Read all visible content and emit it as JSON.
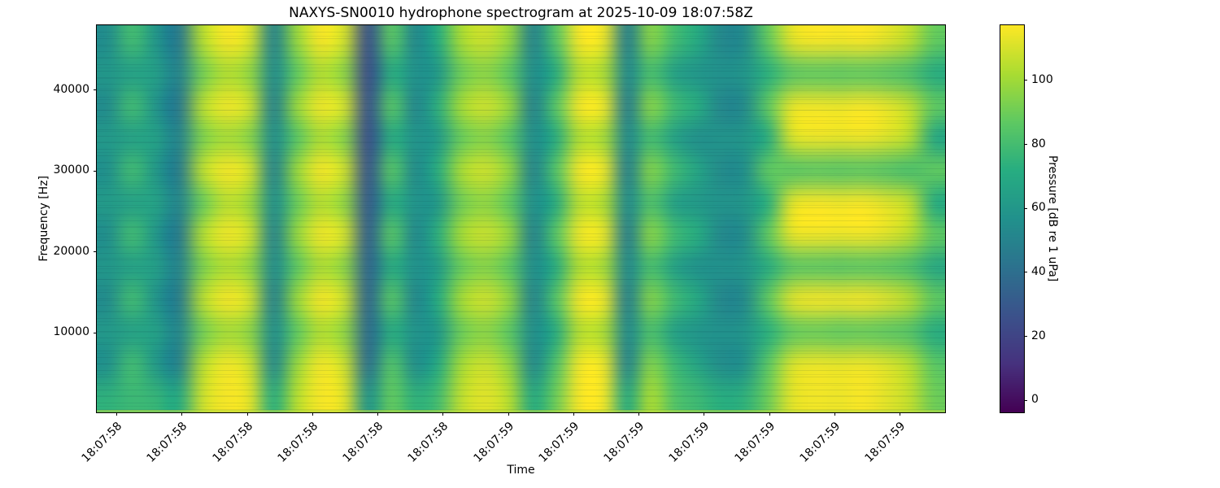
{
  "chart_data": {
    "type": "heatmap",
    "subtype": "spectrogram",
    "title": "NAXYS-SN0010 hydrophone spectrogram at 2025-10-09 18:07:58Z",
    "xlabel": "Time",
    "ylabel": "Frequency [Hz]",
    "x_tick_labels": [
      "18:07:58",
      "18:07:58",
      "18:07:58",
      "18:07:58",
      "18:07:58",
      "18:07:58",
      "18:07:59",
      "18:07:59",
      "18:07:59",
      "18:07:59",
      "18:07:59",
      "18:07:59",
      "18:07:59"
    ],
    "y_ticks": [
      10000,
      20000,
      30000,
      40000
    ],
    "freq_range_hz": [
      0,
      48000
    ],
    "grid_on": false,
    "legend": "none",
    "colorbar": {
      "label": "Pressure [dB re 1 uPa]",
      "ticks": [
        0,
        20,
        40,
        60,
        80,
        100
      ],
      "range_db": [
        -4,
        117
      ],
      "colormap": "viridis",
      "position": "right"
    },
    "grid_shape_note": "grid_db rows run top-to-bottom = 48000 Hz down to 0 Hz; columns run left-to-right in time; values are pressure in dB re 1 uPa (coarse 12x36 resampling of the spectrogram image)",
    "grid_db": [
      [
        55,
        80,
        59,
        45,
        104,
        116,
        110,
        50,
        98,
        116,
        109,
        26,
        86,
        52,
        72,
        102,
        108,
        98,
        50,
        85,
        116,
        114,
        48,
        95,
        80,
        70,
        52,
        54,
        88,
        112,
        116,
        115,
        116,
        112,
        105,
        88
      ],
      [
        60,
        64,
        64,
        50,
        90,
        102,
        96,
        54,
        86,
        102,
        95,
        24,
        70,
        57,
        60,
        89,
        95,
        85,
        55,
        70,
        103,
        101,
        53,
        80,
        64,
        58,
        57,
        59,
        72,
        84,
        86,
        85,
        86,
        84,
        80,
        70
      ],
      [
        54,
        80,
        58,
        44,
        105,
        115,
        109,
        49,
        99,
        115,
        110,
        27,
        86,
        51,
        74,
        102,
        109,
        99,
        49,
        86,
        116,
        115,
        47,
        96,
        80,
        72,
        51,
        53,
        88,
        113,
        115,
        114,
        116,
        113,
        106,
        88
      ],
      [
        61,
        64,
        65,
        50,
        92,
        100,
        94,
        55,
        84,
        101,
        94,
        25,
        70,
        58,
        61,
        88,
        94,
        84,
        55,
        70,
        102,
        100,
        53,
        79,
        64,
        55,
        58,
        60,
        70,
        110,
        114,
        113,
        114,
        111,
        104,
        68
      ],
      [
        56,
        80,
        60,
        46,
        106,
        116,
        110,
        50,
        99,
        116,
        109,
        28,
        86,
        53,
        73,
        103,
        109,
        98,
        50,
        85,
        116,
        115,
        48,
        95,
        80,
        68,
        53,
        55,
        88,
        84,
        85,
        84,
        85,
        83,
        80,
        88
      ],
      [
        62,
        64,
        66,
        51,
        88,
        104,
        98,
        56,
        88,
        103,
        96,
        30,
        70,
        58,
        60,
        90,
        96,
        86,
        56,
        70,
        104,
        102,
        54,
        82,
        64,
        60,
        58,
        60,
        72,
        112,
        116,
        115,
        116,
        112,
        106,
        70
      ],
      [
        55,
        80,
        59,
        45,
        104,
        115,
        109,
        50,
        98,
        115,
        110,
        33,
        86,
        52,
        74,
        102,
        108,
        99,
        49,
        86,
        115,
        114,
        47,
        96,
        80,
        72,
        52,
        54,
        88,
        113,
        115,
        114,
        115,
        112,
        105,
        88
      ],
      [
        60,
        64,
        64,
        50,
        92,
        102,
        96,
        54,
        85,
        101,
        95,
        35,
        70,
        57,
        62,
        88,
        94,
        85,
        55,
        70,
        102,
        100,
        53,
        80,
        64,
        56,
        57,
        59,
        70,
        84,
        85,
        84,
        85,
        84,
        80,
        68
      ],
      [
        54,
        80,
        58,
        46,
        105,
        116,
        110,
        49,
        99,
        116,
        109,
        36,
        86,
        51,
        72,
        102,
        109,
        98,
        50,
        85,
        116,
        115,
        48,
        95,
        80,
        70,
        51,
        53,
        88,
        112,
        116,
        115,
        116,
        112,
        105,
        88
      ],
      [
        61,
        64,
        65,
        51,
        90,
        100,
        95,
        55,
        86,
        102,
        96,
        38,
        70,
        58,
        60,
        89,
        95,
        85,
        55,
        70,
        103,
        101,
        53,
        81,
        64,
        58,
        57,
        59,
        72,
        86,
        88,
        86,
        87,
        85,
        82,
        70
      ],
      [
        56,
        80,
        60,
        48,
        104,
        115,
        108,
        52,
        98,
        115,
        108,
        40,
        84,
        54,
        70,
        101,
        108,
        97,
        52,
        83,
        115,
        114,
        50,
        94,
        78,
        66,
        54,
        56,
        86,
        110,
        114,
        113,
        114,
        111,
        104,
        86
      ],
      [
        74,
        78,
        76,
        70,
        108,
        116,
        112,
        72,
        104,
        116,
        112,
        58,
        88,
        74,
        80,
        106,
        112,
        104,
        70,
        90,
        116,
        115,
        70,
        102,
        84,
        78,
        72,
        74,
        90,
        112,
        115,
        114,
        116,
        112,
        106,
        90
      ]
    ]
  },
  "colors": {
    "background": "#ffffff",
    "axis": "#000000",
    "viridis_stops": [
      [
        0.0,
        "#440154"
      ],
      [
        0.125,
        "#46327e"
      ],
      [
        0.25,
        "#3b528b"
      ],
      [
        0.375,
        "#2c728e"
      ],
      [
        0.5,
        "#21918c"
      ],
      [
        0.625,
        "#27ad81"
      ],
      [
        0.75,
        "#5ec962"
      ],
      [
        0.875,
        "#aadc32"
      ],
      [
        1.0,
        "#fde725"
      ]
    ]
  }
}
